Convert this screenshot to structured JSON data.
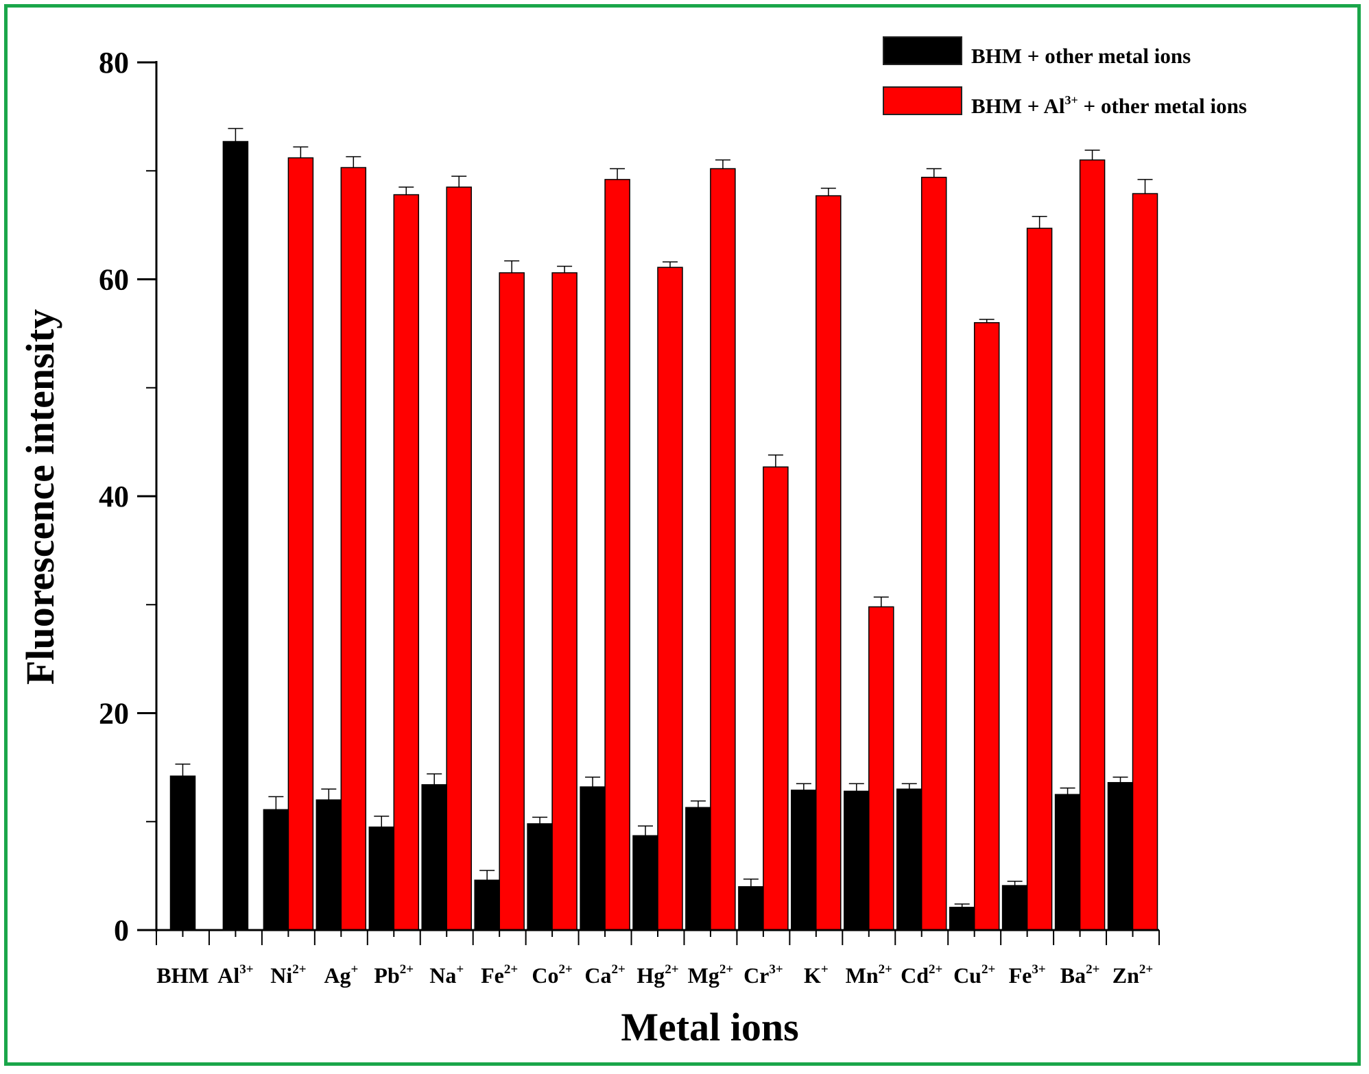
{
  "chart_data": {
    "type": "bar",
    "xlabel": "Metal ions",
    "ylabel": "Fluorescence intensity",
    "ylim": [
      0,
      80
    ],
    "yticks": [
      "0",
      "20",
      "40",
      "60",
      "80"
    ],
    "grid": false,
    "legend_position": "top-right",
    "categories": [
      {
        "base": "BHM",
        "sup": ""
      },
      {
        "base": "Al",
        "sup": "3+"
      },
      {
        "base": "Ni",
        "sup": "2+"
      },
      {
        "base": "Ag",
        "sup": "+"
      },
      {
        "base": "Pb",
        "sup": "2+"
      },
      {
        "base": "Na",
        "sup": "+"
      },
      {
        "base": "Fe",
        "sup": "2+"
      },
      {
        "base": "Co",
        "sup": "2+"
      },
      {
        "base": "Ca",
        "sup": "2+"
      },
      {
        "base": "Hg",
        "sup": "2+"
      },
      {
        "base": "Mg",
        "sup": "2+"
      },
      {
        "base": "Cr",
        "sup": "3+"
      },
      {
        "base": "K",
        "sup": "+"
      },
      {
        "base": "Mn",
        "sup": "2+"
      },
      {
        "base": "Cd",
        "sup": "2+"
      },
      {
        "base": "Cu",
        "sup": "2+"
      },
      {
        "base": "Fe",
        "sup": "3+"
      },
      {
        "base": "Ba",
        "sup": "2+"
      },
      {
        "base": "Zn",
        "sup": "2+"
      }
    ],
    "series": [
      {
        "name": "BHM + other metal ions",
        "name_parts": {
          "pre": "BHM + other metal ions",
          "sup": "",
          "post": ""
        },
        "color": "#000000",
        "values": [
          14.2,
          72.7,
          11.1,
          12.0,
          9.5,
          13.4,
          4.6,
          9.8,
          13.2,
          8.7,
          11.3,
          4.0,
          12.9,
          12.8,
          13.0,
          2.1,
          4.1,
          12.5,
          13.6
        ],
        "errors": [
          1.1,
          1.2,
          1.2,
          1.0,
          1.0,
          1.0,
          0.9,
          0.6,
          0.9,
          0.9,
          0.6,
          0.7,
          0.6,
          0.7,
          0.5,
          0.3,
          0.4,
          0.6,
          0.5
        ]
      },
      {
        "name": "BHM + Al3+ + other metal ions",
        "name_parts": {
          "pre": "BHM + Al",
          "sup": "3+",
          "post": " + other metal ions"
        },
        "color": "#ff0000",
        "values": [
          null,
          null,
          71.2,
          70.3,
          67.8,
          68.5,
          60.6,
          60.6,
          69.2,
          61.1,
          70.2,
          42.7,
          67.7,
          29.8,
          69.4,
          56.0,
          64.7,
          71.0,
          67.9
        ],
        "errors": [
          null,
          null,
          1.0,
          1.0,
          0.7,
          1.0,
          1.1,
          0.6,
          1.0,
          0.5,
          0.8,
          1.1,
          0.7,
          0.9,
          0.8,
          0.3,
          1.1,
          0.9,
          1.3
        ]
      }
    ]
  }
}
